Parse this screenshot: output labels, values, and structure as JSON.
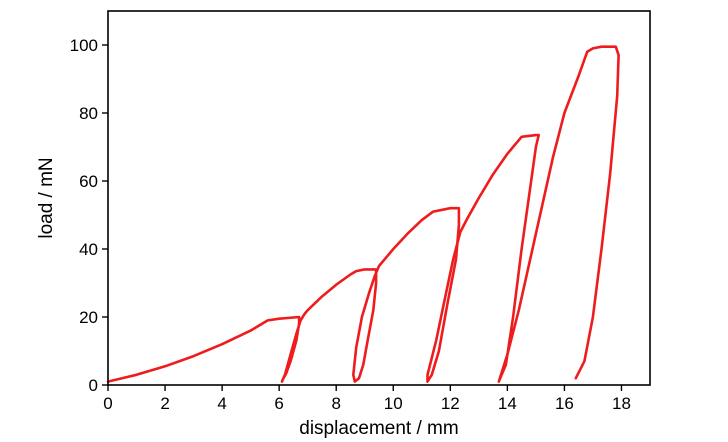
{
  "chart_data": {
    "type": "line",
    "xlabel": "displacement / mm",
    "ylabel": "load / mN",
    "xlim": [
      0,
      19
    ],
    "ylim": [
      0,
      110
    ],
    "xticks": [
      0,
      2,
      4,
      6,
      8,
      10,
      12,
      14,
      16,
      18
    ],
    "yticks": [
      0,
      20,
      40,
      60,
      80,
      100
    ],
    "grid": false,
    "series": [
      {
        "color": "#ee1c1c",
        "x": [
          0,
          1,
          2,
          3,
          4,
          5,
          5.6,
          6.0,
          6.3,
          6.7,
          6.7,
          6.6,
          6.4,
          6.25,
          6.12,
          6.1,
          6.2,
          6.4,
          6.6,
          6.75,
          6.9,
          7.0,
          7.5,
          8.0,
          8.5,
          8.7,
          9.0,
          9.4,
          9.4,
          9.3,
          9.1,
          8.95,
          8.8,
          8.65,
          8.6,
          8.7,
          8.9,
          9.15,
          9.35,
          9.5,
          9.8,
          10.0,
          10.5,
          11.0,
          11.4,
          12.0,
          12.3,
          12.3,
          12.2,
          11.9,
          11.6,
          11.35,
          11.2,
          11.2,
          11.5,
          11.8,
          12.1,
          12.35,
          12.6,
          13.0,
          13.5,
          14.0,
          14.5,
          15.0,
          15.1,
          15.0,
          14.8,
          14.5,
          14.2,
          13.95,
          13.75,
          13.7,
          14.0,
          14.4,
          14.8,
          15.2,
          15.6,
          16.0,
          16.5,
          16.8,
          17.0,
          17.3,
          17.8,
          17.9,
          17.85,
          17.6,
          17.3,
          17.0,
          16.7,
          16.4
        ],
        "y": [
          1,
          3,
          5.5,
          8.5,
          12,
          16,
          19,
          19.5,
          19.7,
          20,
          18,
          13,
          7,
          3.5,
          1.5,
          1,
          3,
          9,
          15,
          19,
          21,
          22,
          26,
          29.5,
          32.5,
          33.5,
          34,
          34,
          30,
          22,
          13,
          6,
          2,
          1,
          3,
          11,
          20,
          27,
          32,
          35,
          38,
          40,
          44.5,
          48.5,
          51,
          52,
          52,
          47,
          37,
          24,
          10,
          3,
          1,
          3,
          13,
          25,
          37,
          45,
          49,
          55,
          62,
          68,
          73,
          73.5,
          73.5,
          70,
          58,
          40,
          20,
          6,
          2,
          1,
          9,
          22,
          37,
          52,
          67,
          80,
          91,
          98,
          99,
          99.5,
          99.5,
          97,
          85,
          62,
          40,
          20,
          7,
          2
        ]
      }
    ]
  }
}
